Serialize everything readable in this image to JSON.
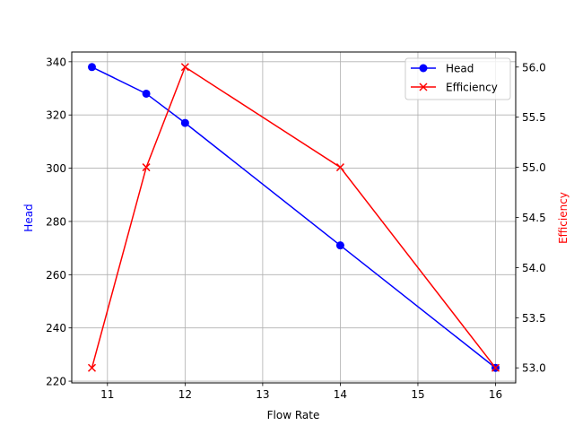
{
  "chart_data": {
    "type": "line",
    "title": "",
    "xlabel": "Flow Rate",
    "ylabel": "Head",
    "y2label": "Efficiency",
    "x": [
      10.8,
      11.5,
      12,
      14,
      16
    ],
    "series": [
      {
        "name": "Head",
        "axis": "left",
        "color": "#0000ff",
        "marker": "o",
        "values": [
          338,
          328,
          317,
          271,
          225
        ]
      },
      {
        "name": "Efficiency",
        "axis": "right",
        "color": "#ff0000",
        "marker": "x",
        "values": [
          53.0,
          55.0,
          56.0,
          55.0,
          53.0
        ]
      }
    ],
    "xlim": [
      10.54,
      16.26
    ],
    "ylim": [
      219.35,
      343.65
    ],
    "y2lim": [
      52.85,
      56.15
    ],
    "xticks": [
      "11",
      "12",
      "13",
      "14",
      "15",
      "16"
    ],
    "yticks": [
      "220",
      "240",
      "260",
      "280",
      "300",
      "320",
      "340"
    ],
    "y2ticks": [
      "53.0",
      "53.5",
      "54.0",
      "54.5",
      "55.0",
      "55.5",
      "56.0"
    ],
    "grid": true,
    "legend_position": "upper right"
  }
}
